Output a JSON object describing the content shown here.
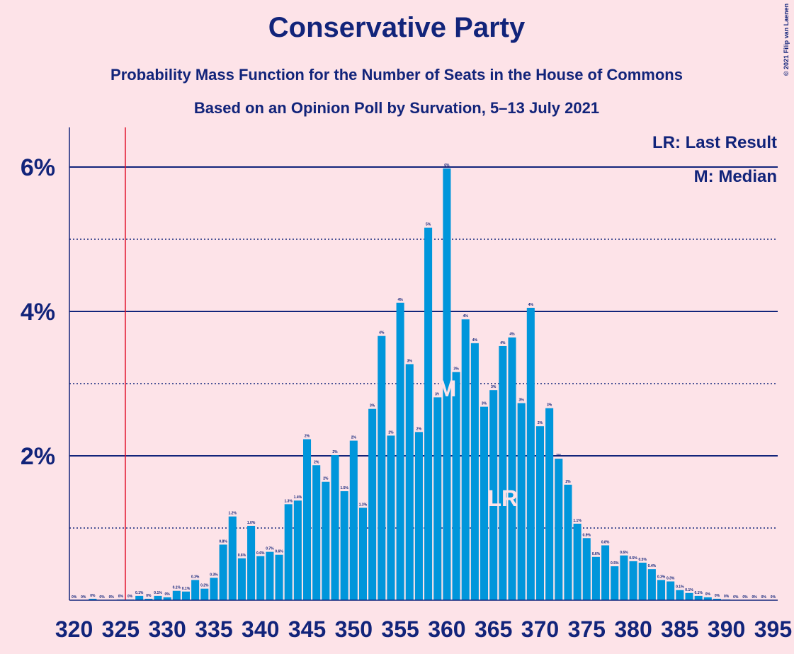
{
  "chart_data": {
    "type": "bar",
    "title": "Conservative Party",
    "subtitle": "Probability Mass Function for the Number of Seats in the House of Commons",
    "subsubtitle": "Based on an Opinion Poll by Survation, 5–13 July 2021",
    "credit": "© 2021 Filip van Laenen",
    "legend_notes": [
      "LR: Last Result",
      "M: Median"
    ],
    "legend": "upper right",
    "color": "#0096db",
    "majority_line": 325.5,
    "majority_color": "#e0102a",
    "annotations": [
      {
        "text": "M",
        "x": 360
      },
      {
        "text": "LR",
        "x": 366
      }
    ],
    "x": [
      320,
      321,
      322,
      323,
      324,
      325,
      326,
      327,
      328,
      329,
      330,
      331,
      332,
      333,
      334,
      335,
      336,
      337,
      338,
      339,
      340,
      341,
      342,
      343,
      344,
      345,
      346,
      347,
      348,
      349,
      350,
      351,
      352,
      353,
      354,
      355,
      356,
      357,
      358,
      359,
      360,
      361,
      362,
      363,
      364,
      365,
      366,
      367,
      368,
      369,
      370,
      371,
      372,
      373,
      374,
      375,
      376,
      377,
      378,
      379,
      380,
      381,
      382,
      383,
      384,
      385,
      386,
      387,
      388,
      389,
      390,
      391,
      392,
      393,
      394,
      395
    ],
    "values": [
      0,
      0,
      0.02,
      0,
      0,
      0.01,
      0.01,
      0.06,
      0.02,
      0.06,
      0.04,
      0.13,
      0.12,
      0.28,
      0.16,
      0.31,
      0.77,
      1.16,
      0.58,
      1.03,
      0.61,
      0.67,
      0.63,
      1.33,
      1.38,
      2.23,
      1.87,
      1.64,
      2.01,
      1.51,
      2.21,
      1.28,
      2.65,
      3.66,
      2.28,
      4.12,
      3.27,
      2.33,
      5.16,
      2.81,
      5.98,
      3.16,
      3.89,
      3.56,
      2.68,
      2.91,
      3.52,
      3.64,
      2.73,
      4.05,
      2.41,
      2.66,
      1.96,
      1.6,
      1.06,
      0.86,
      0.6,
      0.76,
      0.47,
      0.62,
      0.54,
      0.52,
      0.43,
      0.28,
      0.26,
      0.14,
      0.1,
      0.06,
      0.04,
      0.02,
      0.01,
      0,
      0,
      0,
      0,
      0
    ],
    "value_labels": [
      "0%",
      "0%",
      "0%",
      "0%",
      "0%",
      "0%",
      "0%",
      "0.1%",
      "0%",
      "0.1%",
      "0%",
      "0.1%",
      "0.1%",
      "0.3%",
      "0.2%",
      "0.3%",
      "0.8%",
      "1.2%",
      "0.6%",
      "1.0%",
      "0.6%",
      "0.7%",
      "0.6%",
      "1.3%",
      "1.4%",
      "2%",
      "2%",
      "2%",
      "2%",
      "1.5%",
      "2%",
      "1.3%",
      "3%",
      "4%",
      "2%",
      "4%",
      "3%",
      "2%",
      "5%",
      "3%",
      "6%",
      "3%",
      "4%",
      "4%",
      "3%",
      "3%",
      "4%",
      "4%",
      "3%",
      "4%",
      "2%",
      "3%",
      "2%",
      "2%",
      "1.1%",
      "0.9%",
      "0.6%",
      "0.8%",
      "0.5%",
      "0.6%",
      "0.5%",
      "0.5%",
      "0.4%",
      "0.3%",
      "0.3%",
      "0.1%",
      "0.1%",
      "0.1%",
      "0%",
      "0%",
      "0%",
      "0%",
      "0%",
      "0%",
      "0%",
      "0%"
    ],
    "xlim": [
      319.5,
      395.5
    ],
    "xticks": [
      320,
      325,
      330,
      335,
      340,
      345,
      350,
      355,
      360,
      365,
      370,
      375,
      380,
      385,
      390,
      395
    ],
    "ylim": [
      0,
      6.5
    ],
    "yticks": [
      {
        "value": 2,
        "label": "2%"
      },
      {
        "value": 4,
        "label": "4%"
      },
      {
        "value": 6,
        "label": "6%"
      }
    ],
    "minor_yticks": [
      1,
      3,
      5
    ]
  }
}
